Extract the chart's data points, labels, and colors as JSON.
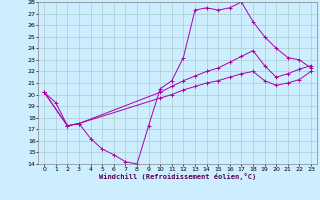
{
  "xlabel": "Windchill (Refroidissement éolien,°C)",
  "xlim": [
    -0.5,
    23.5
  ],
  "ylim": [
    14,
    28
  ],
  "xticks": [
    0,
    1,
    2,
    3,
    4,
    5,
    6,
    7,
    8,
    9,
    10,
    11,
    12,
    13,
    14,
    15,
    16,
    17,
    18,
    19,
    20,
    21,
    22,
    23
  ],
  "yticks": [
    14,
    15,
    16,
    17,
    18,
    19,
    20,
    21,
    22,
    23,
    24,
    25,
    26,
    27,
    28
  ],
  "background_color": "#cceeff",
  "grid_color": "#aacccc",
  "line_color": "#aa00aa",
  "line1_x": [
    0,
    1,
    2,
    3,
    4,
    5,
    6,
    7,
    8,
    9,
    10,
    11,
    12,
    13,
    14,
    15,
    16,
    17,
    18,
    19,
    20,
    21,
    22,
    23
  ],
  "line1_y": [
    20.2,
    19.3,
    17.3,
    17.5,
    16.2,
    15.3,
    14.8,
    14.2,
    14.0,
    17.3,
    20.5,
    21.2,
    23.2,
    27.3,
    27.5,
    27.3,
    27.5,
    28.0,
    26.3,
    25.0,
    24.0,
    23.2,
    23.0,
    22.3
  ],
  "line2_x": [
    0,
    2,
    3,
    10,
    11,
    12,
    13,
    14,
    15,
    16,
    17,
    18,
    19,
    20,
    21,
    22,
    23
  ],
  "line2_y": [
    20.2,
    17.3,
    17.5,
    20.2,
    20.7,
    21.2,
    21.6,
    22.0,
    22.3,
    22.8,
    23.3,
    23.8,
    22.5,
    21.5,
    21.8,
    22.2,
    22.5
  ],
  "line3_x": [
    0,
    2,
    3,
    10,
    11,
    12,
    13,
    14,
    15,
    16,
    17,
    18,
    19,
    20,
    21,
    22,
    23
  ],
  "line3_y": [
    20.2,
    17.3,
    17.5,
    19.7,
    20.0,
    20.4,
    20.7,
    21.0,
    21.2,
    21.5,
    21.8,
    22.0,
    21.2,
    20.8,
    21.0,
    21.3,
    22.0
  ]
}
